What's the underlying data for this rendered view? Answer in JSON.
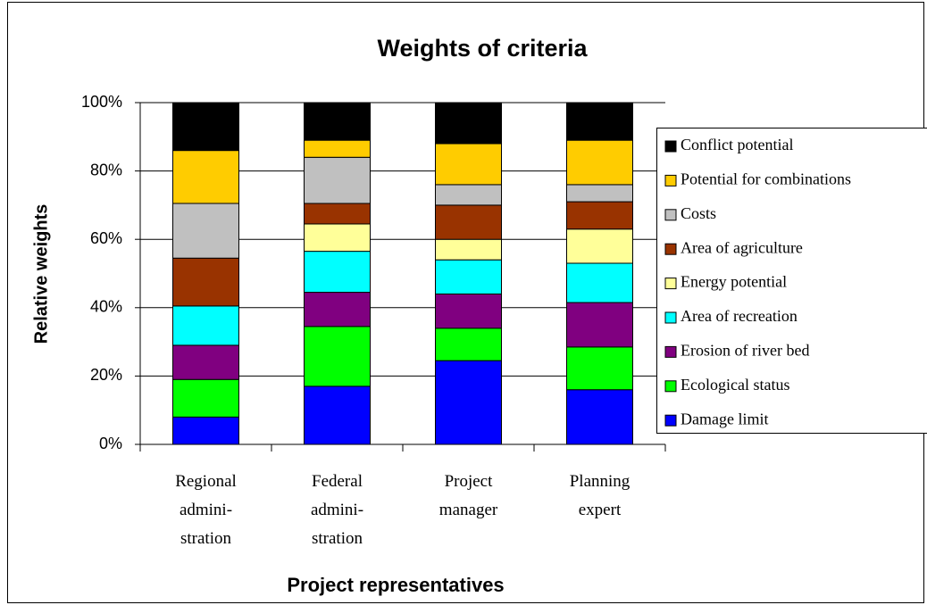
{
  "chart_data": {
    "type": "stacked_bar",
    "title": "Weights of criteria",
    "x_label": "Project representatives",
    "y_label": "Relative weights",
    "categories": [
      "Regional\nadmini-\nstration",
      "Federal\nadmini-\nstration",
      "Project\nmanager",
      "Planning\nexpert"
    ],
    "series": [
      {
        "name": "Damage limit",
        "color": "#0000ff",
        "values": [
          8,
          17,
          24.5,
          16
        ]
      },
      {
        "name": "Ecological status",
        "color": "#00ff00",
        "values": [
          11,
          17.5,
          9.5,
          12.5
        ]
      },
      {
        "name": "Erosion of river bed",
        "color": "#800080",
        "values": [
          10,
          10,
          10,
          13
        ]
      },
      {
        "name": "Area of recreation",
        "color": "#00ffff",
        "values": [
          11.5,
          12,
          10,
          11.5
        ]
      },
      {
        "name": "Energy potential",
        "color": "#ffff99",
        "values": [
          0,
          8,
          6,
          10
        ]
      },
      {
        "name": "Area of agriculture",
        "color": "#993300",
        "values": [
          14,
          6,
          10,
          8
        ]
      },
      {
        "name": "Costs",
        "color": "#c0c0c0",
        "values": [
          16,
          13.5,
          6,
          5
        ]
      },
      {
        "name": "Potential for combinations",
        "color": "#ffcc00",
        "values": [
          15.5,
          5,
          12,
          13
        ]
      },
      {
        "name": "Conflict potential",
        "color": "#000000",
        "values": [
          14,
          11,
          12,
          11
        ]
      }
    ],
    "ylim": [
      0,
      100
    ],
    "yticks": [
      {
        "value": 0,
        "label": "0%"
      },
      {
        "value": 20,
        "label": "20%"
      },
      {
        "value": 40,
        "label": "40%"
      },
      {
        "value": 60,
        "label": "60%"
      },
      {
        "value": 80,
        "label": "80%"
      },
      {
        "value": 100,
        "label": "100%"
      }
    ],
    "grid": true,
    "legend": "right"
  }
}
